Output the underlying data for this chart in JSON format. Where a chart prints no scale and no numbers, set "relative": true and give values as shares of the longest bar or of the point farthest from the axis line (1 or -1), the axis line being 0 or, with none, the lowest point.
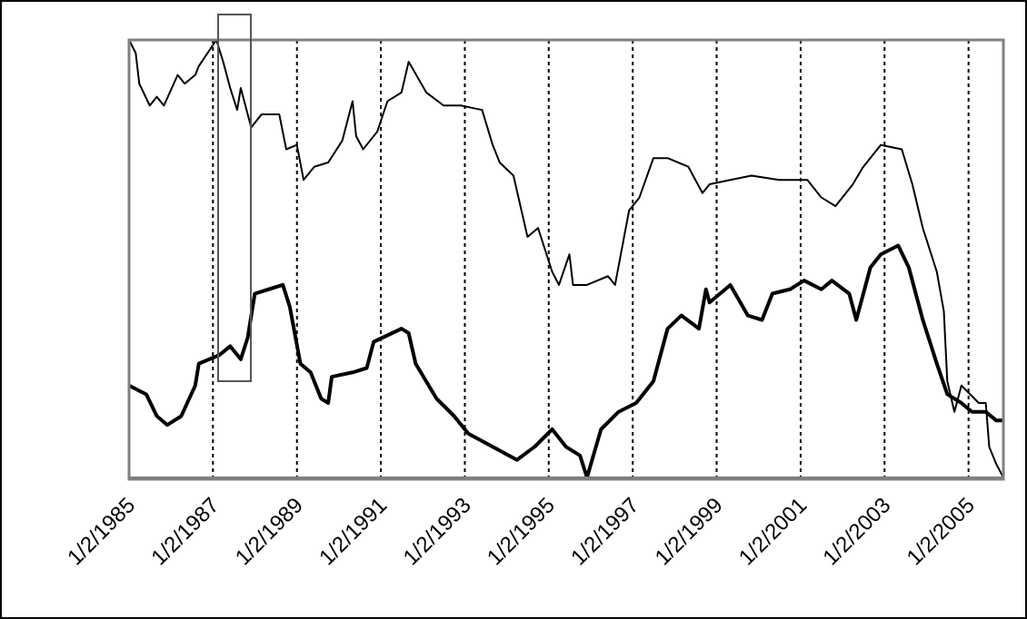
{
  "chart_data": {
    "type": "line",
    "relative": true,
    "grid": "x",
    "line_style": "solid",
    "marker": "none",
    "xlim": [
      "1985-01-02",
      "2005-11"
    ],
    "xticks": [
      {
        "value": "1985-01-02",
        "label": "1/2/1985"
      },
      {
        "value": "1987-01-02",
        "label": "1/2/1987"
      },
      {
        "value": "1989-01-02",
        "label": "1/2/1989"
      },
      {
        "value": "1991-01-02",
        "label": "1/2/1991"
      },
      {
        "value": "1993-01-02",
        "label": "1/2/1993"
      },
      {
        "value": "1995-01-02",
        "label": "1/2/1995"
      },
      {
        "value": "1997-01-02",
        "label": "1/2/1997"
      },
      {
        "value": "1999-01-02",
        "label": "1/2/1999"
      },
      {
        "value": "2001-01-02",
        "label": "1/2/2001"
      },
      {
        "value": "2003-01-02",
        "label": "1/2/2003"
      },
      {
        "value": "2005-01-02",
        "label": "1/2/2005"
      }
    ],
    "series": [
      {
        "color": "#000000",
        "x": [
          "1985-01-02",
          "1985-03",
          "1985-04",
          "1985-07",
          "1985-09",
          "1985-11",
          "1986-03",
          "1986-05",
          "1986-08",
          "1986-09",
          "1987-02",
          "1987-04",
          "1987-06",
          "1987-08",
          "1987-09",
          "1987-12",
          "1988-03",
          "1988-08",
          "1988-10",
          "1989-01",
          "1989-03",
          "1989-06",
          "1989-10",
          "1990-02",
          "1990-05",
          "1990-06",
          "1990-08",
          "1990-12",
          "1991-03",
          "1991-07",
          "1991-09",
          "1992-02",
          "1992-07",
          "1992-12",
          "1993-06",
          "1993-09",
          "1993-11",
          "1994-03",
          "1994-07",
          "1994-10",
          "1995-02",
          "1995-04",
          "1995-07",
          "1995-08",
          "1995-12",
          "1996-06",
          "1996-08",
          "1996-12",
          "1997-03",
          "1997-07",
          "1997-11",
          "1998-05",
          "1998-09",
          "1998-11",
          "1999-05",
          "1999-11",
          "2000-07",
          "2001-03",
          "2001-07",
          "2001-11",
          "2002-04",
          "2002-07",
          "2002-12",
          "2003-06",
          "2003-09",
          "2003-12",
          "2004-04",
          "2004-06",
          "2004-07",
          "2004-09",
          "2004-11",
          "2005-04",
          "2005-06",
          "2005-07",
          "2005-09",
          "2005-11"
        ],
        "values": [
          1,
          0.97,
          0.9,
          0.85,
          0.87,
          0.85,
          0.92,
          0.9,
          0.92,
          0.94,
          1,
          0.95,
          0.89,
          0.84,
          0.89,
          0.8,
          0.83,
          0.83,
          0.75,
          0.76,
          0.68,
          0.71,
          0.72,
          0.77,
          0.86,
          0.78,
          0.75,
          0.79,
          0.86,
          0.88,
          0.95,
          0.88,
          0.85,
          0.85,
          0.84,
          0.76,
          0.72,
          0.69,
          0.55,
          0.57,
          0.47,
          0.44,
          0.51,
          0.44,
          0.44,
          0.46,
          0.44,
          0.61,
          0.64,
          0.73,
          0.73,
          0.71,
          0.65,
          0.67,
          0.68,
          0.69,
          0.68,
          0.68,
          0.64,
          0.62,
          0.67,
          0.71,
          0.76,
          0.75,
          0.67,
          0.57,
          0.47,
          0.38,
          0.22,
          0.15,
          0.21,
          0.17,
          0.17,
          0.07,
          0.03,
          0
        ]
      },
      {
        "color": "#000000",
        "x": [
          "1985-01-02",
          "1985-06",
          "1985-09",
          "1985-12",
          "1986-04",
          "1986-08",
          "1986-09",
          "1987-03",
          "1987-06",
          "1987-09",
          "1987-11",
          "1988-01",
          "1988-05",
          "1988-09",
          "1988-11",
          "1989-02",
          "1989-05",
          "1989-08",
          "1989-10",
          "1989-11",
          "1990-05",
          "1990-09",
          "1990-11",
          "1991-07",
          "1991-09",
          "1991-11",
          "1992-05",
          "1992-10",
          "1993-02",
          "1993-09",
          "1994-04",
          "1994-09",
          "1995-02",
          "1995-06",
          "1995-10",
          "1995-12",
          "1996-04",
          "1996-09",
          "1997-02",
          "1997-07",
          "1997-11",
          "1998-03",
          "1998-08",
          "1998-10",
          "1998-11",
          "1999-05",
          "1999-10",
          "2000-02",
          "2000-05",
          "2000-10",
          "2001-02",
          "2001-07",
          "2001-10",
          "2002-03",
          "2002-05",
          "2002-09",
          "2002-12",
          "2003-05",
          "2003-08",
          "2003-12",
          "2004-04",
          "2004-07",
          "2004-11",
          "2005-02",
          "2005-06",
          "2005-09",
          "2005-11"
        ],
        "values": [
          0.21,
          0.19,
          0.14,
          0.12,
          0.14,
          0.21,
          0.26,
          0.28,
          0.3,
          0.27,
          0.32,
          0.42,
          0.43,
          0.44,
          0.39,
          0.26,
          0.24,
          0.18,
          0.17,
          0.23,
          0.24,
          0.25,
          0.31,
          0.34,
          0.33,
          0.26,
          0.18,
          0.14,
          0.1,
          0.07,
          0.04,
          0.07,
          0.11,
          0.07,
          0.05,
          0,
          0.11,
          0.15,
          0.17,
          0.22,
          0.34,
          0.37,
          0.34,
          0.43,
          0.4,
          0.44,
          0.37,
          0.36,
          0.42,
          0.43,
          0.45,
          0.43,
          0.45,
          0.42,
          0.36,
          0.48,
          0.51,
          0.53,
          0.48,
          0.36,
          0.26,
          0.19,
          0.17,
          0.15,
          0.15,
          0.13,
          0.13
        ]
      }
    ]
  }
}
